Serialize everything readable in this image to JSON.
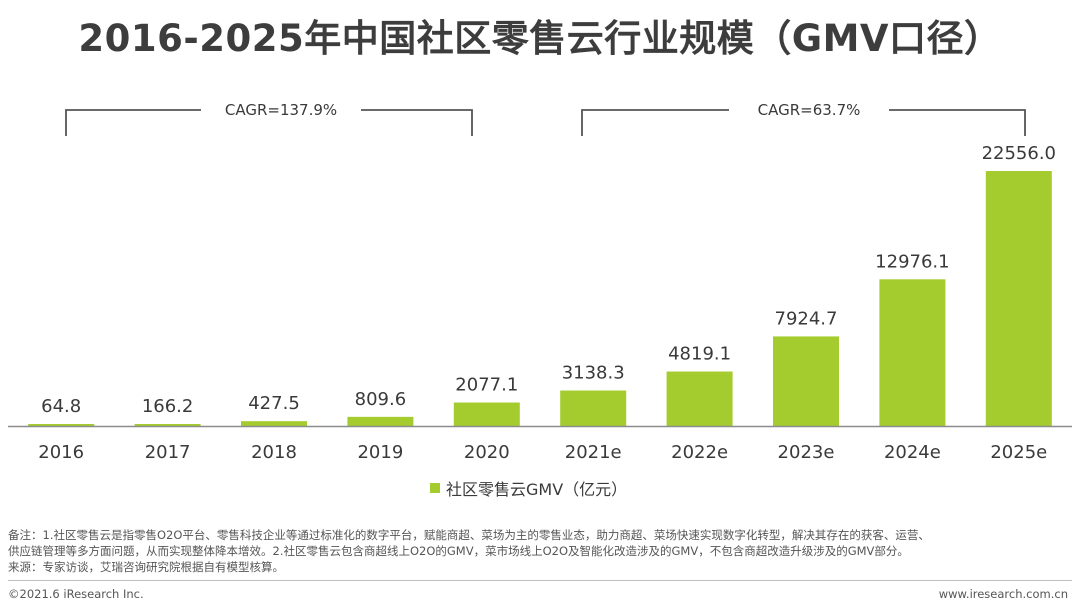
{
  "colors": {
    "bar": "#a5cc2e",
    "axis": "#8c8c8c",
    "text": "#3a3a3a",
    "bracket": "#555555"
  },
  "chart_data": {
    "type": "bar",
    "title": "2016-2025年中国社区零售云行业规模（GMV口径）",
    "categories": [
      "2016",
      "2017",
      "2018",
      "2019",
      "2020",
      "2021e",
      "2022e",
      "2023e",
      "2024e",
      "2025e"
    ],
    "series": [
      {
        "name": "社区零售云GMV（亿元）",
        "values": [
          64.8,
          166.2,
          427.5,
          809.6,
          2077.1,
          3138.3,
          4819.1,
          7924.7,
          12976.1,
          22556.0
        ]
      }
    ],
    "value_labels": [
      "64.8",
      "166.2",
      "427.5",
      "809.6",
      "2077.1",
      "3138.3",
      "4819.1",
      "7924.7",
      "12976.1",
      "22556.0"
    ],
    "ylim": [
      0,
      22556.0
    ],
    "grid": false,
    "legend_position": "bottom-center",
    "annotations": [
      {
        "text": "CAGR=137.9%",
        "from": "2016",
        "to": "2020"
      },
      {
        "text": "CAGR=63.7%",
        "from": "2021e",
        "to": "2025e"
      }
    ]
  },
  "notes": {
    "line1": "备注：1.社区零售云是指零售O2O平台、零售科技企业等通过标准化的数字平台，赋能商超、菜场为主的零售业态，助力商超、菜场快速实现数字化转型，解决其存在的获客、运营、",
    "line2": "供应链管理等多方面问题，从而实现整体降本增效。2.社区零售云包含商超线上O2O的GMV，菜市场线上O2O及智能化改造涉及的GMV，不包含商超改造升级涉及的GMV部分。",
    "line3": "来源：专家访谈，艾瑞咨询研究院根据自有模型核算。"
  },
  "footer": {
    "copyright": "©2021.6 iResearch Inc.",
    "website": "www.iresearch.com.cn"
  }
}
